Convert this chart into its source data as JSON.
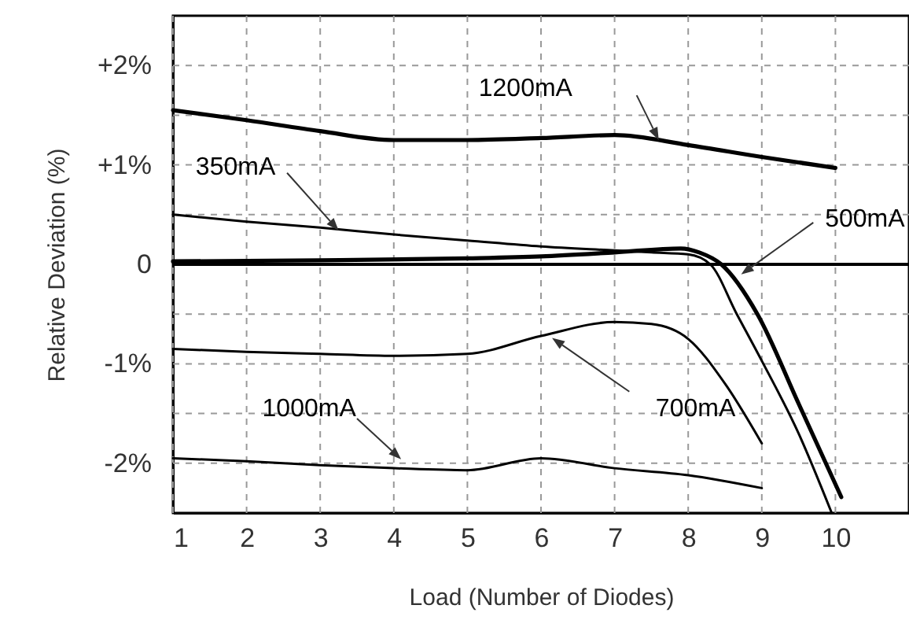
{
  "chart_data": {
    "type": "line",
    "xlabel": "Load (Number of Diodes)",
    "ylabel": "Relative Deviation (%)",
    "xlim": [
      1,
      11
    ],
    "xticks": [
      1,
      2,
      3,
      4,
      5,
      6,
      7,
      8,
      9,
      10
    ],
    "ylim": [
      -2.5,
      2.5
    ],
    "yticks": [
      {
        "value": 2,
        "label": "+2%"
      },
      {
        "value": 1.5,
        "label": null
      },
      {
        "value": 1,
        "label": "+1%"
      },
      {
        "value": 0.5,
        "label": null
      },
      0,
      {
        "value": -0.5,
        "label": null
      },
      {
        "value": -1,
        "label": "-1%"
      },
      {
        "value": -1.5,
        "label": null
      },
      {
        "value": -2,
        "label": "-2%"
      }
    ],
    "grid": true,
    "legend": false,
    "marker": "none",
    "line_style": "solid",
    "ref_lines": [
      {
        "axis": "y",
        "value": 0,
        "color": "#000000"
      }
    ],
    "series": [
      {
        "name": "1200mA",
        "color": "#000000",
        "x": [
          1,
          2,
          3,
          4,
          5,
          6,
          7,
          8,
          9,
          10
        ],
        "values": [
          1.55,
          1.45,
          1.34,
          1.25,
          1.25,
          1.27,
          1.3,
          1.2,
          1.08,
          0.97
        ]
      },
      {
        "name": "350mA",
        "color": "#000000",
        "x": [
          1,
          2,
          3,
          4,
          5,
          6,
          7,
          7.5,
          8,
          8.3,
          8.66,
          9,
          9.5,
          9.95
        ],
        "values": [
          0.5,
          0.43,
          0.37,
          0.3,
          0.24,
          0.18,
          0.14,
          0.12,
          0.1,
          0,
          -0.5,
          -0.97,
          -1.7,
          -2.5
        ]
      },
      {
        "name": "500mA",
        "color": "#000000",
        "x": [
          1,
          3,
          5,
          6,
          7,
          7.9,
          8.15,
          8.45,
          8.94,
          9.5,
          10.08
        ],
        "values": [
          0.03,
          0.04,
          0.06,
          0.08,
          0.12,
          0.16,
          0.12,
          0,
          -0.5,
          -1.4,
          -2.34
        ]
      },
      {
        "name": "700mA",
        "color": "#000000",
        "x": [
          1,
          2,
          3,
          4,
          5,
          6,
          7,
          7.5,
          8,
          8.5,
          9
        ],
        "values": [
          -0.85,
          -0.88,
          -0.9,
          -0.92,
          -0.9,
          -0.72,
          -0.58,
          -0.6,
          -0.75,
          -1.2,
          -1.8
        ]
      },
      {
        "name": "1000mA",
        "color": "#000000",
        "x": [
          1,
          2,
          3,
          4,
          5,
          6,
          7,
          8,
          9
        ],
        "values": [
          -1.95,
          -1.98,
          -2.02,
          -2.05,
          -2.07,
          -1.95,
          -2.05,
          -2.12,
          -2.25
        ]
      }
    ]
  }
}
